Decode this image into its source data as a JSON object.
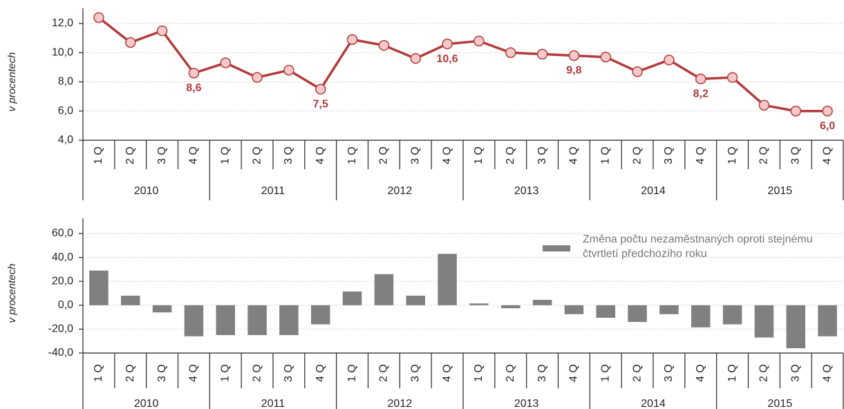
{
  "chart_data": [
    {
      "type": "line",
      "y_label": "v procentech",
      "categories": [
        "1 Q",
        "2 Q",
        "3 Q",
        "4 Q",
        "1 Q",
        "2 Q",
        "3 Q",
        "4 Q",
        "1 Q",
        "2 Q",
        "3 Q",
        "4 Q",
        "1 Q",
        "2 Q",
        "3 Q",
        "4 Q",
        "1 Q",
        "2 Q",
        "3 Q",
        "4 Q",
        "1 Q",
        "2 Q",
        "3 Q",
        "4 Q"
      ],
      "groups": [
        "2010",
        "2011",
        "2012",
        "2013",
        "2014",
        "2015"
      ],
      "values": [
        12.4,
        10.7,
        11.5,
        8.6,
        9.3,
        8.3,
        8.8,
        7.5,
        10.9,
        10.5,
        9.6,
        10.6,
        10.8,
        10.0,
        9.9,
        9.8,
        9.7,
        8.7,
        9.5,
        8.2,
        8.3,
        6.4,
        6.0,
        6.0
      ],
      "value_labels": [
        null,
        null,
        null,
        "8,6",
        null,
        null,
        null,
        "7,5",
        null,
        null,
        null,
        "10,6",
        null,
        null,
        null,
        "9,8",
        null,
        null,
        null,
        "8,2",
        null,
        null,
        null,
        "6,0"
      ],
      "color": "#b23b3b",
      "marker_color": "#f5c9c9",
      "ylim": [
        4,
        12
      ],
      "yticks": [
        {
          "value": 4,
          "label": "4,0"
        },
        {
          "value": 6,
          "label": "6,0"
        },
        {
          "value": 8,
          "label": "8,0"
        },
        {
          "value": 10,
          "label": "10,0"
        },
        {
          "value": 12,
          "label": "12,0"
        }
      ],
      "grid": true
    },
    {
      "type": "bar",
      "y_label": "v procentech",
      "categories": [
        "1 Q",
        "2 Q",
        "3 Q",
        "4 Q",
        "1 Q",
        "2 Q",
        "3 Q",
        "4 Q",
        "1 Q",
        "2 Q",
        "3 Q",
        "4 Q",
        "1 Q",
        "2 Q",
        "3 Q",
        "4 Q",
        "1 Q",
        "2 Q",
        "3 Q",
        "4 Q",
        "1 Q",
        "2 Q",
        "3 Q",
        "4 Q"
      ],
      "groups": [
        "2010",
        "2011",
        "2012",
        "2013",
        "2014",
        "2015"
      ],
      "series": [
        {
          "name": "Změna počtu nezaměstnaných oproti stejnému čtvrtletí předchozího roku",
          "color": "#808080",
          "values": [
            29,
            8,
            -6,
            -26,
            -25,
            -25,
            -25,
            -16,
            11.5,
            26,
            8,
            43,
            1.5,
            -2.5,
            4.5,
            -7.5,
            -10.5,
            -14,
            -7.5,
            -18.5,
            -16,
            -27,
            -36,
            -26
          ]
        }
      ],
      "ylim": [
        -40,
        60
      ],
      "yticks": [
        {
          "value": -40,
          "label": "-40,0"
        },
        {
          "value": -20,
          "label": "-20,0"
        },
        {
          "value": 0,
          "label": "0,0"
        },
        {
          "value": 20,
          "label": "20,0"
        },
        {
          "value": 40,
          "label": "40,0"
        },
        {
          "value": 60,
          "label": "60,0"
        }
      ],
      "grid": true,
      "legend": "upper right"
    }
  ]
}
